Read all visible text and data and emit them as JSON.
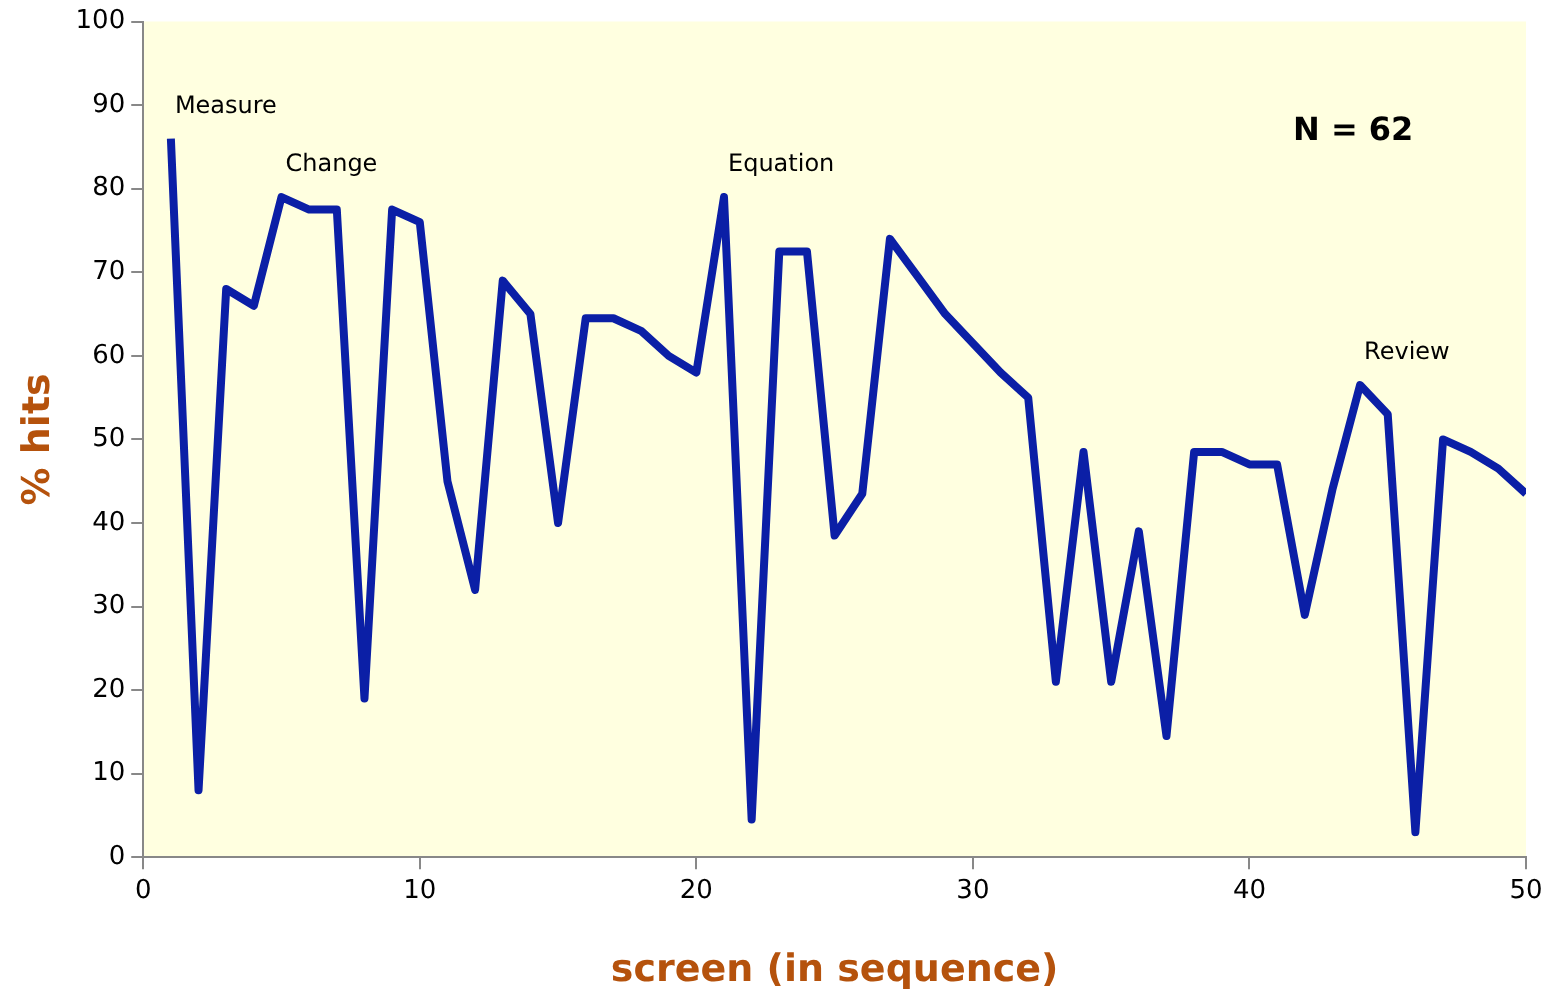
{
  "chart_data": {
    "type": "line",
    "xlabel": "screen (in sequence)",
    "ylabel": "% hits",
    "x": [
      1,
      2,
      3,
      4,
      5,
      6,
      7,
      8,
      9,
      10,
      11,
      12,
      13,
      14,
      15,
      16,
      17,
      18,
      19,
      20,
      21,
      22,
      23,
      24,
      25,
      26,
      27,
      28,
      29,
      30,
      31,
      32,
      33,
      34,
      35,
      36,
      37,
      38,
      39,
      40,
      41,
      42,
      43,
      44,
      45,
      46,
      47,
      48,
      49,
      50
    ],
    "series": [
      {
        "color": "#0b1fa6",
        "values": [
          86,
          8,
          68,
          66,
          79,
          77.5,
          77.5,
          19,
          77.5,
          76,
          45,
          32,
          69,
          65,
          40,
          64.5,
          64.5,
          63,
          60,
          58,
          79,
          4.5,
          72.5,
          72.5,
          38.5,
          43.5,
          74,
          69.5,
          65,
          61.5,
          58,
          55,
          21,
          48.5,
          21,
          39,
          14.5,
          48.5,
          48.5,
          47,
          47,
          29,
          44,
          56.5,
          53,
          3,
          50,
          48.5,
          46.5,
          43.5
        ]
      }
    ],
    "xlim": [
      0,
      50
    ],
    "xticks": [
      0,
      10,
      20,
      30,
      40,
      50
    ],
    "ylim": [
      0,
      100
    ],
    "yticks": [
      0,
      10,
      20,
      30,
      40,
      50,
      60,
      70,
      80,
      90,
      100
    ],
    "grid": false,
    "legend": false,
    "marker": "none",
    "line_style": "solid",
    "annotations": [
      {
        "text": "Measure",
        "x": 1,
        "y": 86
      },
      {
        "text": "Change",
        "x": 5,
        "y": 79
      },
      {
        "text": "Equation",
        "x": 21,
        "y": 79
      },
      {
        "text": "Review",
        "x": 44,
        "y": 56.5
      },
      "N = 62"
    ]
  }
}
